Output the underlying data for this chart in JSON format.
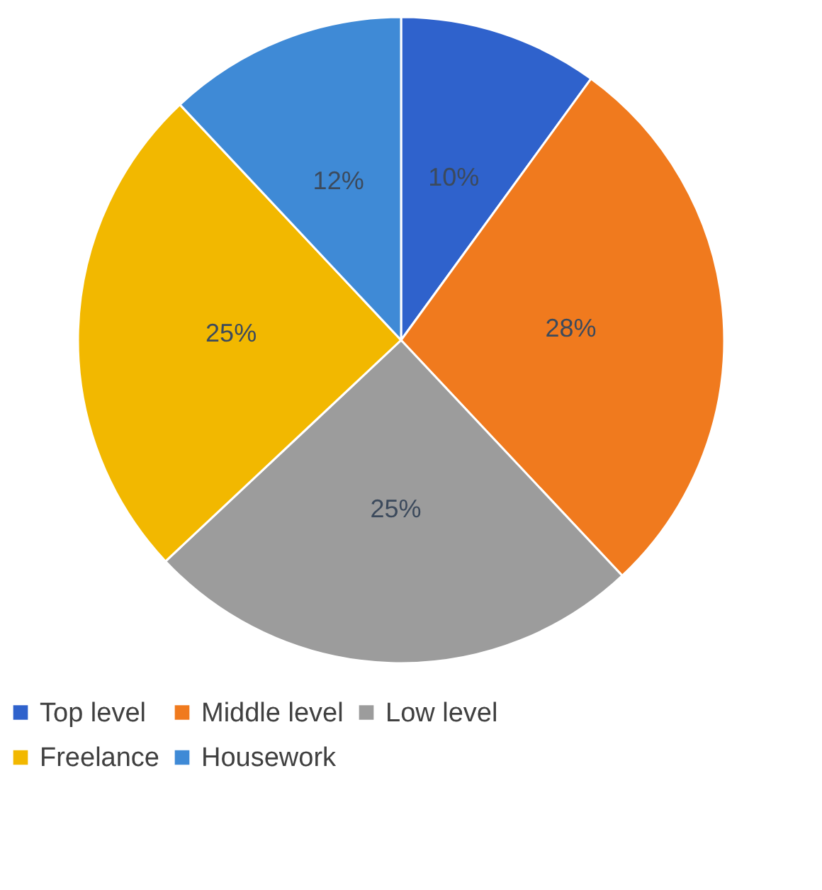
{
  "chart_data": {
    "type": "pie",
    "categories": [
      "Top level",
      "Middle level",
      "Low level",
      "Freelance",
      "Housework"
    ],
    "values": [
      10,
      28,
      25,
      25,
      12
    ],
    "colors": [
      "#2f62cc",
      "#f07a1e",
      "#9c9c9c",
      "#f2b800",
      "#3f8ad6"
    ],
    "value_labels": [
      "10%",
      "28%",
      "25%",
      "25%",
      "12%"
    ],
    "legend": "bottom"
  }
}
